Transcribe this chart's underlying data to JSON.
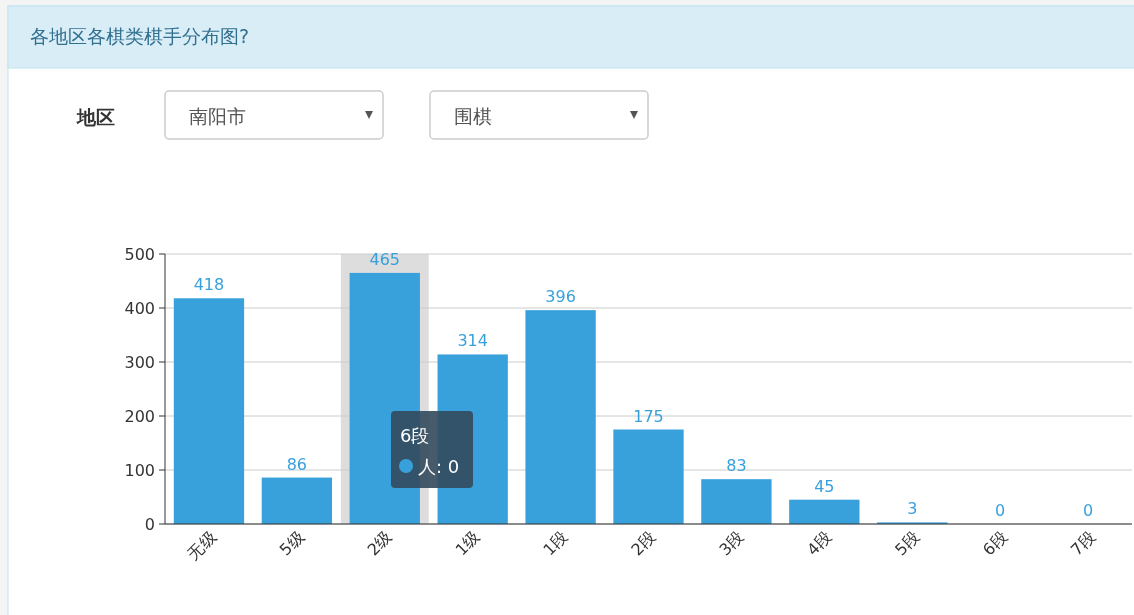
{
  "chart_data": {
    "type": "bar",
    "title": "各地区各棋类棋手分布图?",
    "categories": [
      "无级",
      "5级",
      "2级",
      "1级",
      "1段",
      "2段",
      "3段",
      "4段",
      "5段",
      "6段",
      "7段"
    ],
    "values": [
      418,
      86,
      465,
      314,
      396,
      175,
      83,
      45,
      3,
      0,
      0
    ],
    "color": "#38a1db",
    "ylim": [
      0,
      500
    ],
    "yticks": [
      0,
      100,
      200,
      300,
      400,
      500
    ],
    "grid": "y",
    "data_labels": true,
    "bands": [
      {
        "axis": "x",
        "from": "2级",
        "to": "2级",
        "color": "#dddddd"
      }
    ],
    "annotations": [
      "地区",
      "南阳市",
      "围棋",
      "6段",
      "人: 0"
    ]
  }
}
